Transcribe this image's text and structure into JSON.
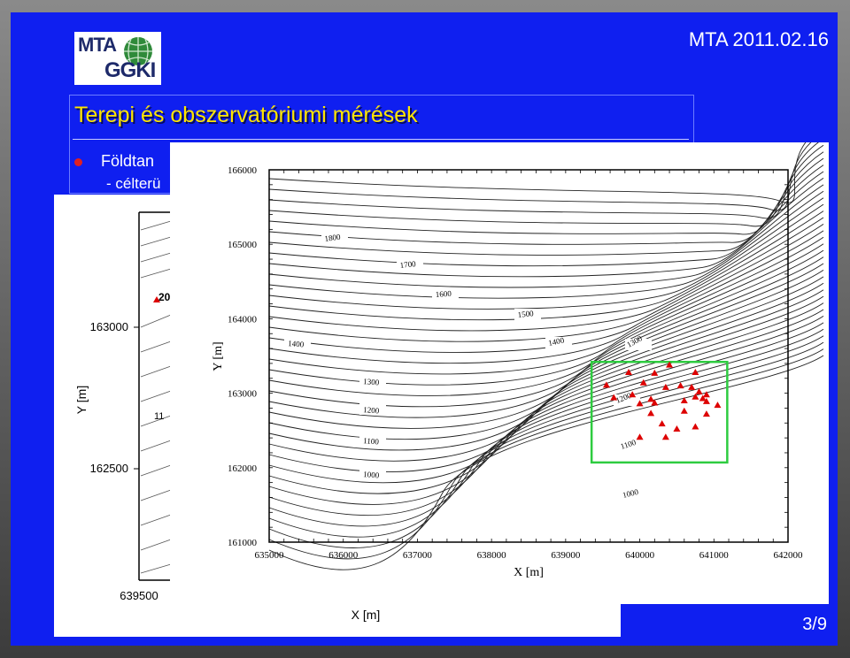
{
  "header": {
    "logo_line1": "MTA",
    "logo_line2": "GGKI",
    "date": "MTA 2011.02.16"
  },
  "title": "Terepi és obszervatóriumi mérések",
  "bullets": {
    "line1": "Földtan",
    "line2": "- célterü"
  },
  "page_number": "3/9",
  "colors": {
    "slide_bg": "#0f1ff0",
    "title": "#ffe600",
    "bullet": "#e02020",
    "box": "#2ecc40",
    "marker": "#dd0000"
  },
  "back_chart": {
    "y_ticks": [
      "163000",
      "162500"
    ],
    "x_tick": "639500",
    "xlabel": "X [m]",
    "ylabel": "Y [m]",
    "label_2": "20",
    "label_11": "11"
  },
  "chart_data": {
    "type": "scatter",
    "xlabel": "X [m]",
    "ylabel": "Y [m]",
    "xlim": [
      635000,
      642000
    ],
    "ylim": [
      161000,
      166000
    ],
    "x_ticks": [
      "635000",
      "636000",
      "637000",
      "638000",
      "639000",
      "640000",
      "641000",
      "642000"
    ],
    "y_ticks": [
      "161000",
      "162000",
      "163000",
      "164000",
      "165000",
      "166000"
    ],
    "contour_labels": [
      "1800",
      "1700",
      "1600",
      "1500",
      "1400",
      "1400",
      "1300",
      "1300",
      "1200",
      "1200",
      "1100",
      "1100",
      "1000",
      "1000"
    ],
    "box": {
      "x0": 639350,
      "x1": 641180,
      "y0": 162070,
      "y1": 163420
    },
    "points": [
      [
        639550,
        163110
      ],
      [
        639850,
        163280
      ],
      [
        640200,
        163270
      ],
      [
        640400,
        163380
      ],
      [
        640750,
        163280
      ],
      [
        640050,
        163140
      ],
      [
        640350,
        163080
      ],
      [
        640550,
        163100
      ],
      [
        640700,
        163080
      ],
      [
        640800,
        163020
      ],
      [
        640900,
        162980
      ],
      [
        639650,
        162940
      ],
      [
        639900,
        162980
      ],
      [
        640150,
        162920
      ],
      [
        640750,
        162950
      ],
      [
        640850,
        162930
      ],
      [
        640000,
        162860
      ],
      [
        640200,
        162870
      ],
      [
        640600,
        162900
      ],
      [
        640900,
        162890
      ],
      [
        641050,
        162840
      ],
      [
        640150,
        162730
      ],
      [
        640600,
        162760
      ],
      [
        640900,
        162720
      ],
      [
        640300,
        162590
      ],
      [
        640500,
        162520
      ],
      [
        640750,
        162550
      ],
      [
        640000,
        162410
      ],
      [
        640350,
        162410
      ]
    ]
  }
}
